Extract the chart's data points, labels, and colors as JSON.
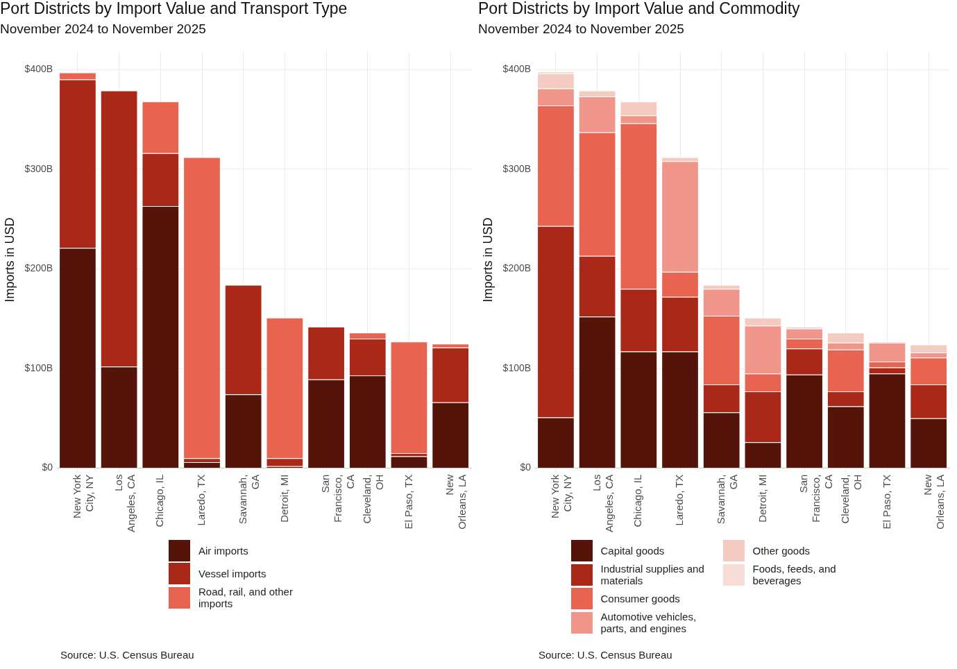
{
  "chart_data": [
    {
      "type": "bar",
      "title": "Port Districts by Import Value and Transport Type",
      "subtitle": "November 2024 to November 2025",
      "ylabel": "Imports in USD",
      "categories": [
        "New York City, NY",
        "Los Angeles, CA",
        "Chicago, IL",
        "Laredo, TX",
        "Savannah, GA",
        "Detroit, MI",
        "San Francisco, CA",
        "Cleveland, OH",
        "El Paso, TX",
        "New Orleans, LA"
      ],
      "series": [
        {
          "name": "Air imports",
          "color": "#541409",
          "values": [
            221,
            102,
            263,
            6,
            74,
            2,
            89,
            93,
            12,
            66
          ]
        },
        {
          "name": "Vessel imports",
          "color": "#a92817",
          "values": [
            169,
            277,
            53,
            4,
            110,
            8,
            53,
            37,
            3,
            55
          ]
        },
        {
          "name": "Road, rail, and other imports",
          "color": "#e96450",
          "values": [
            7,
            0,
            52,
            302,
            0,
            141,
            0,
            6,
            112,
            4
          ]
        }
      ],
      "stacked": true,
      "ylim": [
        0,
        418
      ],
      "yticks": [
        {
          "value": 0,
          "label": "$0"
        },
        {
          "value": 100,
          "label": "$100B"
        },
        {
          "value": 200,
          "label": "$200B"
        },
        {
          "value": 300,
          "label": "$300B"
        },
        {
          "value": 400,
          "label": "$400B"
        }
      ],
      "grid": true,
      "legend": "bottom",
      "annotations": [
        "Source: U.S. Census Bureau"
      ]
    },
    {
      "type": "bar",
      "title": "Port Districts by Import Value and Commodity",
      "subtitle": "November 2024 to November 2025",
      "ylabel": "Imports in USD",
      "categories": [
        "New York City, NY",
        "Los Angeles, CA",
        "Chicago, IL",
        "Laredo, TX",
        "Savannah, GA",
        "Detroit, MI",
        "San Francisco, CA",
        "Cleveland, OH",
        "El Paso, TX",
        "New Orleans, LA"
      ],
      "series": [
        {
          "name": "Capital goods",
          "color": "#541409",
          "values": [
            51,
            152,
            117,
            117,
            56,
            26,
            94,
            62,
            95,
            50
          ]
        },
        {
          "name": "Industrial supplies and materials",
          "color": "#a92817",
          "values": [
            192,
            61,
            63,
            55,
            28,
            51,
            26,
            15,
            6,
            34
          ]
        },
        {
          "name": "Consumer goods",
          "color": "#e96450",
          "values": [
            121,
            124,
            166,
            25,
            69,
            18,
            10,
            42,
            6,
            27
          ]
        },
        {
          "name": "Automotive vehicles, parts, and engines",
          "color": "#ef958a",
          "values": [
            17,
            36,
            8,
            111,
            27,
            48,
            10,
            7,
            19,
            5
          ]
        },
        {
          "name": "Other goods",
          "color": "#f4cbc0",
          "values": [
            15,
            6,
            14,
            4,
            4,
            8,
            2,
            10,
            1,
            8
          ]
        },
        {
          "name": "Foods, feeds, and beverages",
          "color": "#f8dcd6",
          "values": [
            2,
            0,
            0,
            0,
            0,
            0,
            0,
            0,
            0,
            null
          ]
        }
      ],
      "stacked": true,
      "ylim": [
        0,
        418
      ],
      "yticks": [
        {
          "value": 0,
          "label": "$0"
        },
        {
          "value": 100,
          "label": "$100B"
        },
        {
          "value": 200,
          "label": "$200B"
        },
        {
          "value": 300,
          "label": "$300B"
        },
        {
          "value": 400,
          "label": "$400B"
        }
      ],
      "grid": true,
      "legend": "bottom",
      "annotations": [
        "Source: U.S. Census Bureau"
      ]
    }
  ]
}
